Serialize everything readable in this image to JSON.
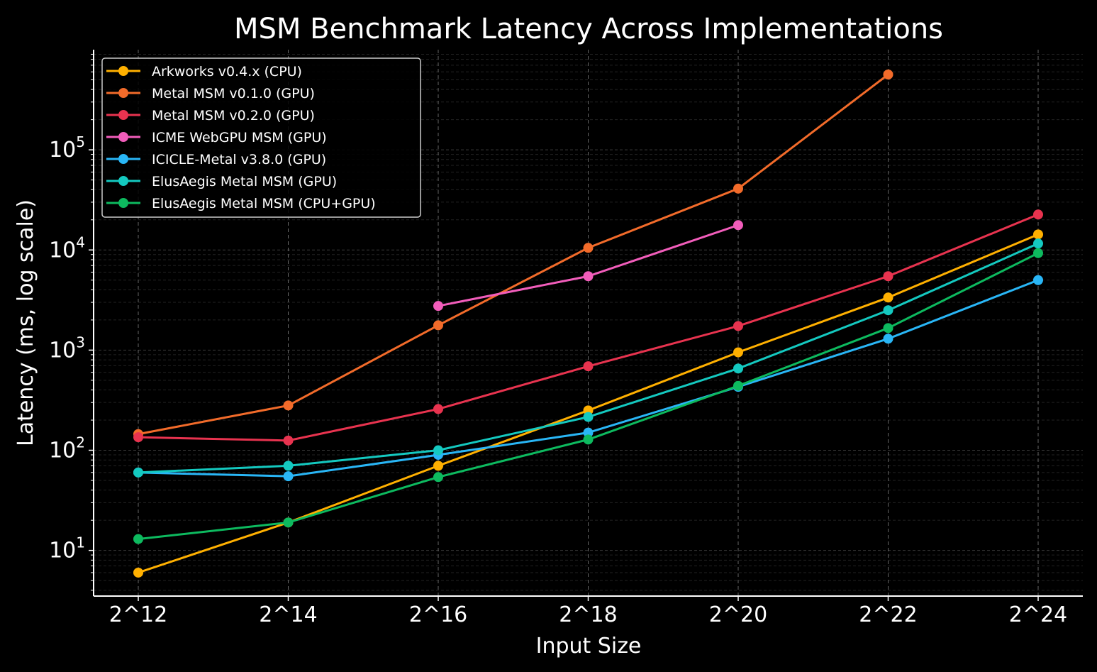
{
  "chart_data": {
    "type": "line",
    "title": "MSM Benchmark Latency Across Implementations",
    "xlabel": "Input Size",
    "ylabel": "Latency (ms, log scale)",
    "y_scale": "log",
    "ylim": [
      3.5,
      1000000
    ],
    "x_scale": "log2",
    "x_exponents": [
      12,
      14,
      16,
      18,
      20,
      22,
      24
    ],
    "categories": [
      "2^12",
      "2^14",
      "2^16",
      "2^18",
      "2^20",
      "2^22",
      "2^24"
    ],
    "y_ticks": [
      {
        "base": "10",
        "exp": "1",
        "value": 10
      },
      {
        "base": "10",
        "exp": "2",
        "value": 100
      },
      {
        "base": "10",
        "exp": "3",
        "value": 1000
      },
      {
        "base": "10",
        "exp": "4",
        "value": 10000
      },
      {
        "base": "10",
        "exp": "5",
        "value": 100000
      }
    ],
    "grid": true,
    "legend_position": "top-left",
    "series": [
      {
        "name": "Arkworks v0.4.x (CPU)",
        "color": "#FFB000",
        "values": [
          6,
          19,
          70,
          250,
          950,
          3350,
          14300
        ]
      },
      {
        "name": "Metal MSM v0.1.0 (GPU)",
        "color": "#F26B2A",
        "values": [
          145,
          280,
          1770,
          10500,
          41000,
          null,
          null
        ],
        "extra": null
      },
      {
        "name": "Metal MSM v0.2.0 (GPU)",
        "color": "#E8334F",
        "values": [
          135,
          125,
          258,
          690,
          1740,
          5470,
          22600
        ]
      },
      {
        "name": "ICME WebGPU MSM (GPU)",
        "color": "#F25DBB",
        "values": [
          null,
          null,
          2760,
          5470,
          17700,
          null,
          null
        ]
      },
      {
        "name": "ICICLE-Metal v3.8.0 (GPU)",
        "color": "#29B6F6",
        "values": [
          60,
          55,
          90,
          150,
          430,
          1300,
          5000
        ]
      },
      {
        "name": "ElusAegis Metal MSM (GPU)",
        "color": "#14C9C0",
        "values": [
          60,
          70,
          100,
          215,
          655,
          2500,
          11600
        ]
      },
      {
        "name": "ElusAegis Metal MSM (CPU+GPU)",
        "color": "#0DBA5F",
        "values": [
          13,
          19,
          54,
          128,
          440,
          1660,
          9300
        ]
      }
    ]
  }
}
